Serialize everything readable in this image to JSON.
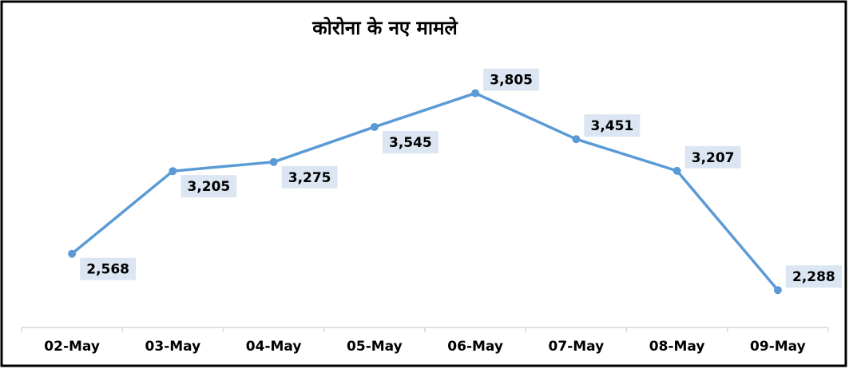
{
  "chart_data": {
    "type": "line",
    "title": "कोरोना के नए मामले",
    "categories": [
      "02-May",
      "03-May",
      "04-May",
      "05-May",
      "06-May",
      "07-May",
      "08-May",
      "09-May"
    ],
    "series": [
      {
        "name": "नए मामले",
        "color": "#5b9bd5",
        "values": [
          2568,
          3205,
          3275,
          3545,
          3805,
          3451,
          3207,
          2288
        ],
        "value_labels": [
          "2,568",
          "3,205",
          "3,275",
          "3,545",
          "3,805",
          "3,451",
          "3,207",
          "2,288"
        ]
      }
    ],
    "ylim": [
      2000,
      4200
    ]
  }
}
